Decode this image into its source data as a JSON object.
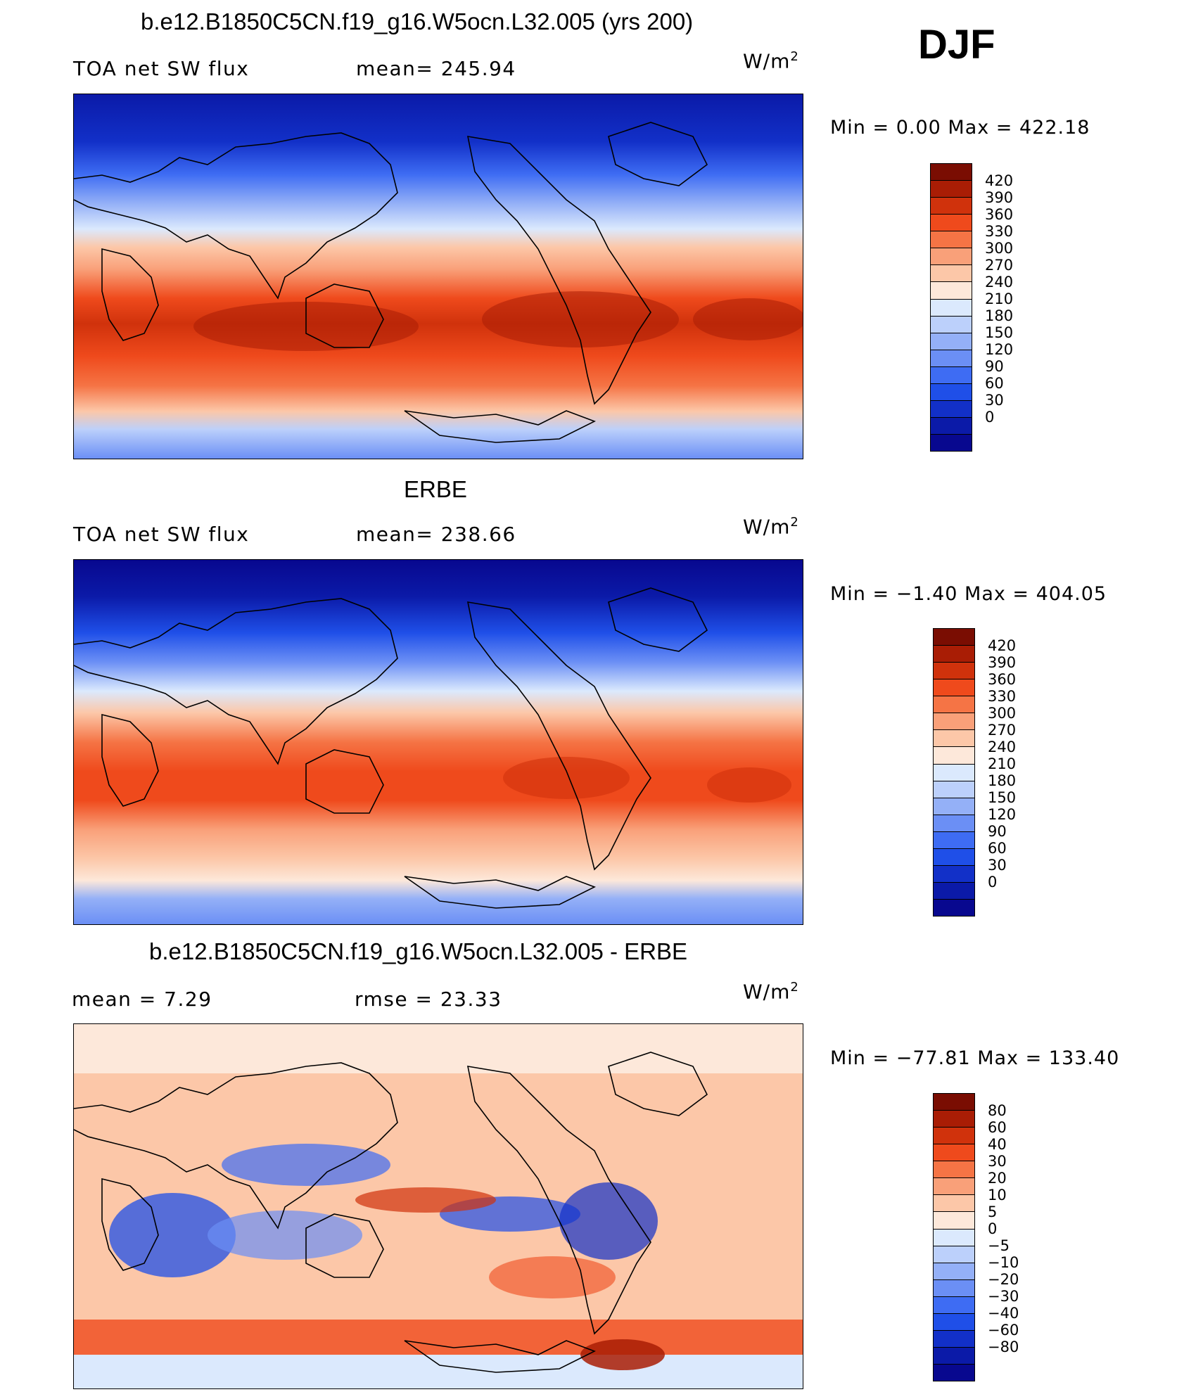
{
  "season": "DJF",
  "panels": [
    {
      "title": "b.e12.B1850C5CN.f19_g16.W5ocn.L32.005 (yrs 200)",
      "left_label": "TOA net SW flux",
      "center_label": "mean= 245.94",
      "units_base": "W/m",
      "units_exp": "2",
      "minmax": "Min =    0.00 Max = 422.18",
      "levels": [
        "420",
        "390",
        "360",
        "330",
        "300",
        "270",
        "240",
        "210",
        "180",
        "150",
        "120",
        "90",
        "60",
        "30",
        "0"
      ]
    },
    {
      "title": "ERBE",
      "left_label": "TOA net SW flux",
      "center_label": "mean= 238.66",
      "units_base": "W/m",
      "units_exp": "2",
      "minmax": "Min =  −1.40 Max = 404.05",
      "levels": [
        "420",
        "390",
        "360",
        "330",
        "300",
        "270",
        "240",
        "210",
        "180",
        "150",
        "120",
        "90",
        "60",
        "30",
        "0"
      ]
    },
    {
      "title": "b.e12.B1850C5CN.f19_g16.W5ocn.L32.005 - ERBE",
      "left_label": "mean =     7.29",
      "center_label": "rmse =    23.33",
      "units_base": "W/m",
      "units_exp": "2",
      "minmax": "Min = −77.81 Max = 133.40",
      "levels": [
        "80",
        "60",
        "40",
        "30",
        "20",
        "10",
        "5",
        "0",
        "−5",
        "−10",
        "−20",
        "−30",
        "−40",
        "−60",
        "−80"
      ]
    }
  ],
  "colors": {
    "abs_scale": [
      "#08088f",
      "#0b1aa8",
      "#1230c8",
      "#1f4fe8",
      "#3e6cf3",
      "#6b8ff5",
      "#94b0f7",
      "#bcd0fb",
      "#dbe9fd",
      "#fde8da",
      "#fcc7a8",
      "#f9a079",
      "#f57445",
      "#ef4a1c",
      "#d0320c",
      "#a91d05",
      "#7a0d02"
    ],
    "diff_scale": [
      "#08088f",
      "#0b1aa8",
      "#1230c8",
      "#1f4fe8",
      "#3e6cf3",
      "#6b8ff5",
      "#94b0f7",
      "#bcd0fb",
      "#dbe9fd",
      "#fde8da",
      "#fcc7a8",
      "#f9a079",
      "#f57445",
      "#ef4a1c",
      "#d0320c",
      "#a91d05",
      "#7a0d02"
    ]
  }
}
